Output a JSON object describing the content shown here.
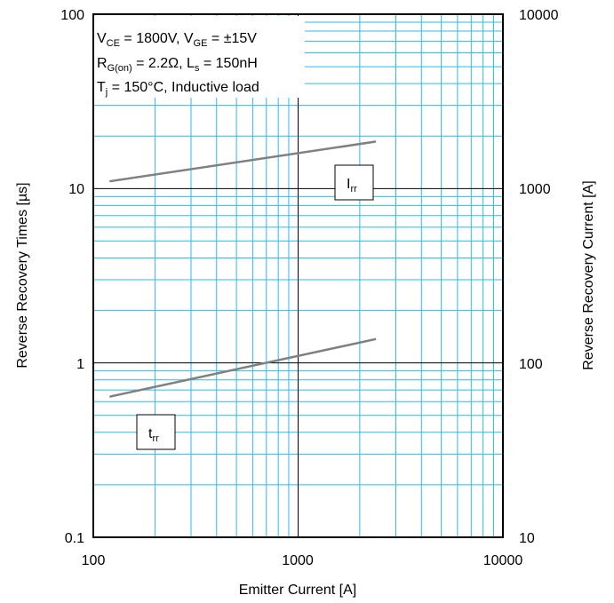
{
  "chart_data": {
    "type": "line",
    "xlabel": "Emitter Current [A]",
    "ylabel": "Reverse Recovery Times [µs]",
    "y2label": "Reverse Recovery Current [A]",
    "xscale": "log",
    "yscale": "log",
    "y2scale": "log",
    "xlim": [
      100,
      10000
    ],
    "ylim": [
      0.1,
      100
    ],
    "y2lim": [
      10,
      10000
    ],
    "grid": true,
    "colors": {
      "series": "#808080",
      "major_grid": "#000000",
      "minor_grid": "#2bbbe8"
    },
    "x_ticks": [
      "100",
      "1000",
      "10000"
    ],
    "y_ticks": [
      "0.1",
      "1",
      "10",
      "100"
    ],
    "y2_ticks": [
      "10",
      "100",
      "1000",
      "10000"
    ],
    "conditions": {
      "line1": [
        "V",
        "CE",
        " = 1800V, V",
        "GE",
        " = ±15V"
      ],
      "line2": [
        "R",
        "G(on)",
        " = 2.2Ω, L",
        "s",
        " = 150nH"
      ],
      "line3": [
        "T",
        "j",
        " = 150°C, Inductive load"
      ]
    },
    "series": [
      {
        "name": "t_rr",
        "label_main": "t",
        "label_sub": "rr",
        "axis": "left",
        "x": [
          120,
          2400
        ],
        "y": [
          0.64,
          1.37
        ]
      },
      {
        "name": "I_rr",
        "label_main": "I",
        "label_sub": "rr",
        "axis": "right",
        "x": [
          120,
          2400
        ],
        "y": [
          1100,
          1860
        ]
      }
    ]
  }
}
